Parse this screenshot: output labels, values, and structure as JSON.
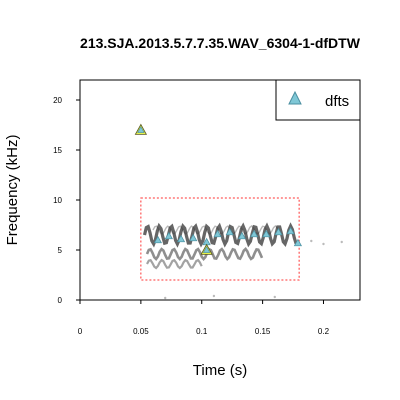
{
  "chart_data": {
    "type": "scatter",
    "title": "213.SJA.2013.5.7.7.35.WAV_6304-1-dfDTW",
    "xlabel": "Time (s)",
    "ylabel": "Frequency (kHz)",
    "xlim": [
      0,
      0.23
    ],
    "ylim": [
      0,
      22
    ],
    "x_ticks": [
      0,
      0.05,
      0.1,
      0.15,
      0.2
    ],
    "x_tick_labels": [
      "0",
      "0.05",
      "0.1",
      "0.15",
      "0.2"
    ],
    "y_ticks": [
      0,
      5,
      10,
      15,
      20
    ],
    "y_tick_labels": [
      "0",
      "5",
      "10",
      "15",
      "20"
    ],
    "legend": {
      "position": "top-right",
      "entries": [
        {
          "name": "dfts",
          "marker": "triangle",
          "color": "#7fc7d6"
        }
      ]
    },
    "series": [
      {
        "name": "dfts",
        "marker": "triangle",
        "fill": "#7fc7d6",
        "x": [
          0.064,
          0.073,
          0.083,
          0.093,
          0.104,
          0.113,
          0.123,
          0.133,
          0.143,
          0.153,
          0.163,
          0.173,
          0.179
        ],
        "y": [
          6.0,
          6.4,
          6.1,
          6.2,
          5.8,
          6.6,
          6.8,
          6.4,
          6.6,
          6.6,
          6.8,
          6.9,
          5.7
        ]
      }
    ],
    "highlight_points": [
      {
        "x": 0.05,
        "y": 17.0,
        "color": "#e6f24a"
      },
      {
        "x": 0.104,
        "y": 5.0,
        "color": "#e6f24a"
      }
    ],
    "selection_box": {
      "x": [
        0.05,
        0.18
      ],
      "y": [
        2.0,
        10.2
      ],
      "style": "dotted",
      "color": "#ff3333"
    },
    "spectrogram_color": "#333333"
  }
}
